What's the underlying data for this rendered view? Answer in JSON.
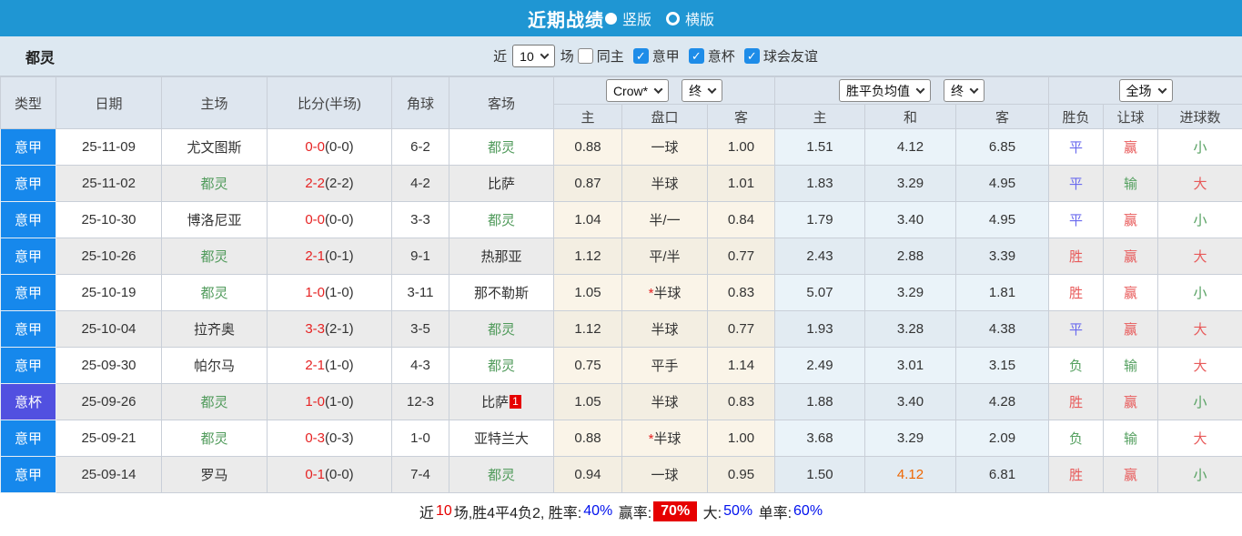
{
  "titlebar": {
    "title": "近期战绩",
    "radio_vertical": "竖版",
    "radio_horizontal": "横版",
    "selected": "竖版"
  },
  "filterbar": {
    "team": "都灵",
    "recent_label": "近",
    "count_select": "10",
    "games_label": "场",
    "checkboxes": [
      {
        "label": "同主",
        "checked": false
      },
      {
        "label": "意甲",
        "checked": true
      },
      {
        "label": "意杯",
        "checked": true
      },
      {
        "label": "球会友谊",
        "checked": true
      }
    ]
  },
  "table": {
    "headers": {
      "type": "类型",
      "date": "日期",
      "home": "主场",
      "score": "比分(半场)",
      "corner": "角球",
      "away": "客场",
      "ah_home": "主",
      "ah_line": "盘口",
      "ah_away": "客",
      "eu_home": "主",
      "eu_draw": "和",
      "eu_away": "客",
      "result": "胜负",
      "handicap": "让球",
      "goals": "进球数"
    },
    "selects": {
      "company": "Crow*",
      "ah_time": "终",
      "eu_type": "胜平负均值",
      "eu_time": "终",
      "scope": "全场"
    },
    "rows": [
      {
        "type": "意甲",
        "type_color": "blue",
        "date": "25-11-09",
        "home": "尤文图斯",
        "home_team": false,
        "score_ft": "0-0",
        "score_ht": "(0-0)",
        "corner": "6-2",
        "away": "都灵",
        "away_team": true,
        "away_badge": "",
        "ah": [
          "0.88",
          "一球",
          "1.00"
        ],
        "ah_star": false,
        "eu": [
          "1.51",
          "4.12",
          "6.85"
        ],
        "eu_draw_hot": false,
        "result": {
          "t": "平",
          "c": "blue"
        },
        "give": {
          "t": "赢",
          "c": "red"
        },
        "goal": {
          "t": "小",
          "c": "green"
        }
      },
      {
        "type": "意甲",
        "type_color": "blue",
        "date": "25-11-02",
        "home": "都灵",
        "home_team": true,
        "score_ft": "2-2",
        "score_ht": "(2-2)",
        "corner": "4-2",
        "away": "比萨",
        "away_team": false,
        "away_badge": "",
        "ah": [
          "0.87",
          "半球",
          "1.01"
        ],
        "ah_star": false,
        "eu": [
          "1.83",
          "3.29",
          "4.95"
        ],
        "eu_draw_hot": false,
        "result": {
          "t": "平",
          "c": "blue"
        },
        "give": {
          "t": "输",
          "c": "green"
        },
        "goal": {
          "t": "大",
          "c": "red"
        }
      },
      {
        "type": "意甲",
        "type_color": "blue",
        "date": "25-10-30",
        "home": "博洛尼亚",
        "home_team": false,
        "score_ft": "0-0",
        "score_ht": "(0-0)",
        "corner": "3-3",
        "away": "都灵",
        "away_team": true,
        "away_badge": "",
        "ah": [
          "1.04",
          "半/一",
          "0.84"
        ],
        "ah_star": false,
        "eu": [
          "1.79",
          "3.40",
          "4.95"
        ],
        "eu_draw_hot": false,
        "result": {
          "t": "平",
          "c": "blue"
        },
        "give": {
          "t": "赢",
          "c": "red"
        },
        "goal": {
          "t": "小",
          "c": "green"
        }
      },
      {
        "type": "意甲",
        "type_color": "blue",
        "date": "25-10-26",
        "home": "都灵",
        "home_team": true,
        "score_ft": "2-1",
        "score_ht": "(0-1)",
        "corner": "9-1",
        "away": "热那亚",
        "away_team": false,
        "away_badge": "",
        "ah": [
          "1.12",
          "平/半",
          "0.77"
        ],
        "ah_star": false,
        "eu": [
          "2.43",
          "2.88",
          "3.39"
        ],
        "eu_draw_hot": false,
        "result": {
          "t": "胜",
          "c": "red"
        },
        "give": {
          "t": "赢",
          "c": "red"
        },
        "goal": {
          "t": "大",
          "c": "red"
        }
      },
      {
        "type": "意甲",
        "type_color": "blue",
        "date": "25-10-19",
        "home": "都灵",
        "home_team": true,
        "score_ft": "1-0",
        "score_ht": "(1-0)",
        "corner": "3-11",
        "away": "那不勒斯",
        "away_team": false,
        "away_badge": "",
        "ah": [
          "1.05",
          "半球",
          "0.83"
        ],
        "ah_star": true,
        "eu": [
          "5.07",
          "3.29",
          "1.81"
        ],
        "eu_draw_hot": false,
        "result": {
          "t": "胜",
          "c": "red"
        },
        "give": {
          "t": "赢",
          "c": "red"
        },
        "goal": {
          "t": "小",
          "c": "green"
        }
      },
      {
        "type": "意甲",
        "type_color": "blue",
        "date": "25-10-04",
        "home": "拉齐奥",
        "home_team": false,
        "score_ft": "3-3",
        "score_ht": "(2-1)",
        "corner": "3-5",
        "away": "都灵",
        "away_team": true,
        "away_badge": "",
        "ah": [
          "1.12",
          "半球",
          "0.77"
        ],
        "ah_star": false,
        "eu": [
          "1.93",
          "3.28",
          "4.38"
        ],
        "eu_draw_hot": false,
        "result": {
          "t": "平",
          "c": "blue"
        },
        "give": {
          "t": "赢",
          "c": "red"
        },
        "goal": {
          "t": "大",
          "c": "red"
        }
      },
      {
        "type": "意甲",
        "type_color": "blue",
        "date": "25-09-30",
        "home": "帕尔马",
        "home_team": false,
        "score_ft": "2-1",
        "score_ht": "(1-0)",
        "corner": "4-3",
        "away": "都灵",
        "away_team": true,
        "away_badge": "",
        "ah": [
          "0.75",
          "平手",
          "1.14"
        ],
        "ah_star": false,
        "eu": [
          "2.49",
          "3.01",
          "3.15"
        ],
        "eu_draw_hot": false,
        "result": {
          "t": "负",
          "c": "green"
        },
        "give": {
          "t": "输",
          "c": "green"
        },
        "goal": {
          "t": "大",
          "c": "red"
        }
      },
      {
        "type": "意杯",
        "type_color": "purple",
        "date": "25-09-26",
        "home": "都灵",
        "home_team": true,
        "score_ft": "1-0",
        "score_ht": "(1-0)",
        "corner": "12-3",
        "away": "比萨",
        "away_team": false,
        "away_badge": "1",
        "ah": [
          "1.05",
          "半球",
          "0.83"
        ],
        "ah_star": false,
        "eu": [
          "1.88",
          "3.40",
          "4.28"
        ],
        "eu_draw_hot": false,
        "result": {
          "t": "胜",
          "c": "red"
        },
        "give": {
          "t": "赢",
          "c": "red"
        },
        "goal": {
          "t": "小",
          "c": "green"
        }
      },
      {
        "type": "意甲",
        "type_color": "blue",
        "date": "25-09-21",
        "home": "都灵",
        "home_team": true,
        "score_ft": "0-3",
        "score_ht": "(0-3)",
        "corner": "1-0",
        "away": "亚特兰大",
        "away_team": false,
        "away_badge": "",
        "ah": [
          "0.88",
          "半球",
          "1.00"
        ],
        "ah_star": true,
        "eu": [
          "3.68",
          "3.29",
          "2.09"
        ],
        "eu_draw_hot": false,
        "result": {
          "t": "负",
          "c": "green"
        },
        "give": {
          "t": "输",
          "c": "green"
        },
        "goal": {
          "t": "大",
          "c": "red"
        }
      },
      {
        "type": "意甲",
        "type_color": "blue",
        "date": "25-09-14",
        "home": "罗马",
        "home_team": false,
        "score_ft": "0-1",
        "score_ht": "(0-0)",
        "corner": "7-4",
        "away": "都灵",
        "away_team": true,
        "away_badge": "",
        "ah": [
          "0.94",
          "一球",
          "0.95"
        ],
        "ah_star": false,
        "eu": [
          "1.50",
          "4.12",
          "6.81"
        ],
        "eu_draw_hot": true,
        "result": {
          "t": "胜",
          "c": "red"
        },
        "give": {
          "t": "赢",
          "c": "red"
        },
        "goal": {
          "t": "小",
          "c": "green"
        }
      }
    ]
  },
  "footer": {
    "parts": [
      {
        "text": "近",
        "cls": "black"
      },
      {
        "text": "10",
        "cls": "red"
      },
      {
        "text": "场,胜4平4负2, 胜率:",
        "cls": "black"
      },
      {
        "text": "40%",
        "cls": "blue"
      },
      {
        "text": " 赢率:",
        "cls": "black"
      },
      {
        "text": "70%",
        "cls": "badge-red"
      },
      {
        "text": " 大:",
        "cls": "black"
      },
      {
        "text": "50%",
        "cls": "blue"
      },
      {
        "text": " 单率:",
        "cls": "black"
      },
      {
        "text": "60%",
        "cls": "blue"
      }
    ]
  },
  "colors": {
    "topbar": "#1f96d3",
    "check_blue": "#1e8ce8",
    "serie_a_badge": "#1688ec",
    "coppa_badge": "#5150e0",
    "team_green": "#4f9a5a",
    "score_red": "#e62222",
    "win_red": "#e85a5a",
    "draw_blue": "#6a6aee",
    "loss_green": "#55a060",
    "hot_orange": "#ee6600",
    "pct_blue": "#0011ee",
    "badge_red": "#e60000"
  }
}
